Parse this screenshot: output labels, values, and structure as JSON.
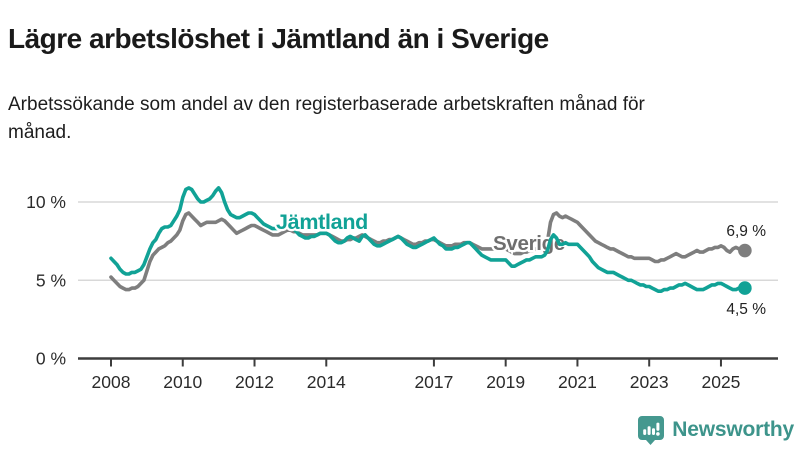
{
  "title": "Lägre arbetslöshet i Jämtland än i Sverige",
  "subtitle": "Arbetssökande som andel av den registerbaserade arbetskraften månad för månad.",
  "logo": {
    "brand": "Newsworthy",
    "icon_color": "#45988f",
    "text_color": "#3d948b"
  },
  "chart_data": {
    "type": "line",
    "unit": "%",
    "frequency": "monthly",
    "x_start": "2008-01",
    "x_end": "2025-09",
    "ylim": [
      0,
      11.5
    ],
    "grid": "horizontal",
    "colors": {
      "grid": "#d8d8d8",
      "axis": "#3d3d3d",
      "tick_label": "#2b2b2b",
      "end_label": "#222222"
    },
    "y_ticks": [
      {
        "value": 0,
        "label": "0 %"
      },
      {
        "value": 5,
        "label": "5 %"
      },
      {
        "value": 10,
        "label": "10 %"
      }
    ],
    "x_ticks": [
      {
        "year": 2008,
        "label": "2008"
      },
      {
        "year": 2010,
        "label": "2010"
      },
      {
        "year": 2012,
        "label": "2012"
      },
      {
        "year": 2014,
        "label": "2014"
      },
      {
        "year": 2017,
        "label": "2017"
      },
      {
        "year": 2019,
        "label": "2019"
      },
      {
        "year": 2021,
        "label": "2021"
      },
      {
        "year": 2023,
        "label": "2023"
      },
      {
        "year": 2025,
        "label": "2025"
      }
    ],
    "series": [
      {
        "name": "Sverige",
        "color": "#7e7e7e",
        "label_color": "#6f6f6f",
        "end_label": "6,9 %",
        "end_value": 6.9,
        "values": [
          5.2,
          5.0,
          4.8,
          4.6,
          4.5,
          4.4,
          4.4,
          4.5,
          4.5,
          4.6,
          4.8,
          5.0,
          5.6,
          6.2,
          6.6,
          6.8,
          7.0,
          7.1,
          7.2,
          7.4,
          7.5,
          7.7,
          7.9,
          8.2,
          8.8,
          9.2,
          9.3,
          9.1,
          8.9,
          8.7,
          8.5,
          8.6,
          8.7,
          8.7,
          8.7,
          8.7,
          8.8,
          8.9,
          8.8,
          8.6,
          8.4,
          8.2,
          8.0,
          8.1,
          8.2,
          8.3,
          8.4,
          8.5,
          8.5,
          8.4,
          8.3,
          8.2,
          8.1,
          8.0,
          7.9,
          7.9,
          7.9,
          8.0,
          8.1,
          8.2,
          8.2,
          8.1,
          8.1,
          8.0,
          7.9,
          7.9,
          7.9,
          7.9,
          7.9,
          7.9,
          8.0,
          8.0,
          8.0,
          7.9,
          7.8,
          7.7,
          7.6,
          7.5,
          7.5,
          7.6,
          7.6,
          7.7,
          7.7,
          7.8,
          7.9,
          7.8,
          7.7,
          7.6,
          7.5,
          7.4,
          7.4,
          7.5,
          7.5,
          7.6,
          7.6,
          7.7,
          7.8,
          7.7,
          7.6,
          7.5,
          7.4,
          7.3,
          7.3,
          7.4,
          7.4,
          7.5,
          7.5,
          7.6,
          7.6,
          7.5,
          7.4,
          7.3,
          7.2,
          7.2,
          7.2,
          7.3,
          7.3,
          7.3,
          7.4,
          7.4,
          7.4,
          7.3,
          7.2,
          7.1,
          7.0,
          7.0,
          7.0,
          7.0,
          7.0,
          7.0,
          7.0,
          7.0,
          7.0,
          6.9,
          6.8,
          6.7,
          6.7,
          6.7,
          6.8,
          6.8,
          6.9,
          6.9,
          7.0,
          7.0,
          7.1,
          7.1,
          7.5,
          8.7,
          9.2,
          9.3,
          9.1,
          9.0,
          9.1,
          9.0,
          8.9,
          8.8,
          8.7,
          8.5,
          8.3,
          8.1,
          7.9,
          7.7,
          7.5,
          7.4,
          7.3,
          7.2,
          7.1,
          7.0,
          7.0,
          6.9,
          6.8,
          6.7,
          6.6,
          6.5,
          6.5,
          6.4,
          6.4,
          6.4,
          6.4,
          6.4,
          6.4,
          6.3,
          6.2,
          6.2,
          6.3,
          6.3,
          6.4,
          6.5,
          6.6,
          6.7,
          6.6,
          6.5,
          6.5,
          6.6,
          6.7,
          6.8,
          6.9,
          6.8,
          6.8,
          6.9,
          7.0,
          7.0,
          7.1,
          7.1,
          7.2,
          7.1,
          6.9,
          6.8,
          7.0,
          7.1,
          7.0,
          6.9,
          6.9
        ]
      },
      {
        "name": "Jämtland",
        "color": "#11a296",
        "label_color": "#11a296",
        "end_label": "4,5 %",
        "end_value": 4.5,
        "values": [
          6.4,
          6.2,
          6.0,
          5.7,
          5.5,
          5.4,
          5.4,
          5.5,
          5.5,
          5.6,
          5.7,
          6.0,
          6.5,
          7.0,
          7.4,
          7.6,
          8.0,
          8.3,
          8.4,
          8.4,
          8.5,
          8.8,
          9.1,
          9.5,
          10.3,
          10.8,
          10.9,
          10.8,
          10.5,
          10.2,
          10.0,
          10.0,
          10.1,
          10.2,
          10.4,
          10.7,
          10.9,
          10.6,
          10.0,
          9.5,
          9.2,
          9.1,
          9.0,
          9.0,
          9.1,
          9.2,
          9.3,
          9.3,
          9.2,
          9.0,
          8.8,
          8.6,
          8.5,
          8.4,
          8.3,
          8.3,
          8.3,
          8.4,
          8.5,
          8.6,
          8.5,
          8.3,
          8.1,
          7.9,
          7.8,
          7.7,
          7.7,
          7.8,
          7.8,
          7.9,
          8.0,
          8.0,
          8.0,
          7.9,
          7.7,
          7.5,
          7.4,
          7.4,
          7.5,
          7.7,
          7.8,
          7.7,
          7.6,
          7.5,
          7.8,
          7.9,
          7.7,
          7.5,
          7.3,
          7.2,
          7.2,
          7.3,
          7.4,
          7.5,
          7.6,
          7.7,
          7.8,
          7.7,
          7.5,
          7.3,
          7.2,
          7.1,
          7.1,
          7.2,
          7.3,
          7.4,
          7.5,
          7.6,
          7.7,
          7.5,
          7.3,
          7.2,
          7.0,
          7.0,
          7.0,
          7.1,
          7.1,
          7.2,
          7.3,
          7.4,
          7.4,
          7.2,
          7.0,
          6.8,
          6.6,
          6.5,
          6.4,
          6.3,
          6.3,
          6.3,
          6.3,
          6.3,
          6.3,
          6.1,
          5.9,
          5.9,
          6.0,
          6.1,
          6.2,
          6.3,
          6.3,
          6.4,
          6.5,
          6.5,
          6.5,
          6.6,
          6.9,
          7.6,
          7.9,
          7.7,
          7.3,
          7.3,
          7.4,
          7.3,
          7.3,
          7.3,
          7.3,
          7.1,
          6.9,
          6.7,
          6.5,
          6.2,
          6.0,
          5.8,
          5.7,
          5.6,
          5.5,
          5.5,
          5.5,
          5.4,
          5.3,
          5.2,
          5.1,
          5.0,
          5.0,
          4.9,
          4.8,
          4.7,
          4.7,
          4.6,
          4.6,
          4.5,
          4.4,
          4.3,
          4.3,
          4.4,
          4.4,
          4.5,
          4.5,
          4.6,
          4.7,
          4.7,
          4.8,
          4.7,
          4.6,
          4.5,
          4.4,
          4.4,
          4.4,
          4.5,
          4.6,
          4.7,
          4.7,
          4.8,
          4.8,
          4.7,
          4.6,
          4.5,
          4.4,
          4.4,
          4.5,
          4.5,
          4.5
        ]
      }
    ]
  }
}
